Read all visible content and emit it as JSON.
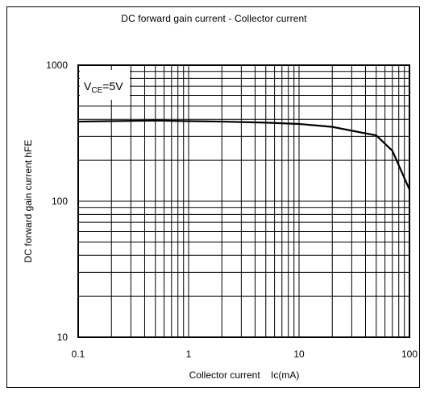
{
  "chart_data": {
    "type": "line",
    "title": "DC forward gain current  - Collector current",
    "xlabel": "Collector current    Ic(mA)",
    "ylabel": "DC forward gain current  hFE",
    "xscale": "log",
    "yscale": "log",
    "xlim": [
      0.1,
      100
    ],
    "ylim": [
      10,
      1000
    ],
    "x_ticks": [
      {
        "value": 0.1,
        "label": "0.1"
      },
      {
        "value": 1,
        "label": "1"
      },
      {
        "value": 10,
        "label": "10"
      },
      {
        "value": 100,
        "label": "100"
      }
    ],
    "y_ticks": [
      {
        "value": 10,
        "label": "10"
      },
      {
        "value": 100,
        "label": "100"
      },
      {
        "value": 1000,
        "label": "1000"
      }
    ],
    "grid": true,
    "annotation": {
      "main": "V",
      "sub": "CE",
      "rest": "=5V"
    },
    "series": [
      {
        "x": [
          0.1,
          0.2,
          0.5,
          1,
          2,
          5,
          10,
          20,
          30,
          50,
          70,
          100
        ],
        "y": [
          385,
          388,
          392,
          388,
          385,
          378,
          370,
          352,
          330,
          305,
          235,
          122
        ]
      }
    ]
  }
}
